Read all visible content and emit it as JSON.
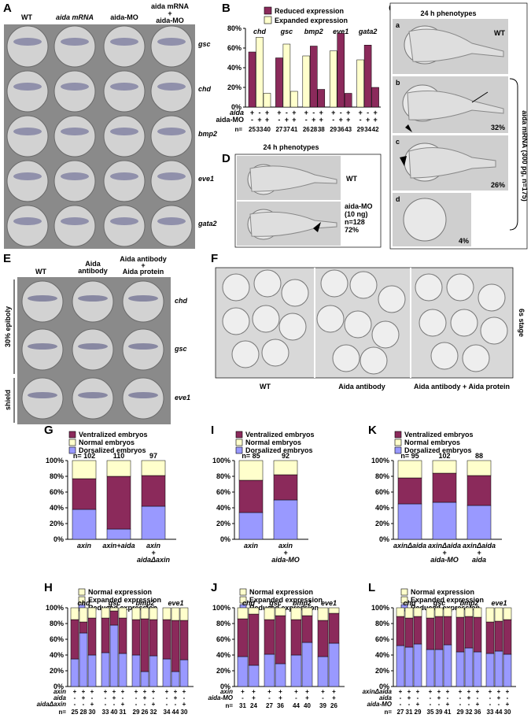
{
  "colors": {
    "reduced": "#8b2a5b",
    "expanded": "#ffffcc",
    "ventral": "#8b2a5b",
    "normal": "#ffffcc",
    "dorsal": "#9999ff",
    "grid": "#000000"
  },
  "panels": {
    "A": {
      "label": "A",
      "cols": [
        "WT",
        "aida mRNA",
        "aida-MO",
        "aida mRNA + aida-MO"
      ],
      "genes": [
        "gsc",
        "chd",
        "bmp2",
        "eve1",
        "gata2"
      ]
    },
    "B": {
      "label": "B"
    },
    "C": {
      "label": "C",
      "title": "24 h phenotypes",
      "wt": "WT",
      "sub": [
        "a",
        "b",
        "c",
        "d"
      ],
      "pct": [
        "32%",
        "26%",
        "4%"
      ],
      "side": "aida mRNA (300 pg, n=175)"
    },
    "D": {
      "label": "D",
      "title": "24 h phenotypes",
      "wt": "WT",
      "mo": "aida-MO",
      "dose": "(10 ng)",
      "n": "n=128",
      "pct": "72%"
    },
    "E": {
      "label": "E",
      "cols": [
        "WT",
        "Aida antibody",
        "Aida antibody + Aida protein"
      ],
      "genes": [
        "chd",
        "gsc",
        "eve1"
      ],
      "stage1": "30% epiboly",
      "stage2": "shield"
    },
    "F": {
      "label": "F",
      "groups": [
        "WT",
        "Aida antibody",
        "Aida antibody + Aida protein"
      ],
      "stage": "6s stage"
    },
    "G": {
      "label": "G"
    },
    "H": {
      "label": "H"
    },
    "I": {
      "label": "I"
    },
    "J": {
      "label": "J"
    },
    "K": {
      "label": "K"
    },
    "L": {
      "label": "L"
    }
  },
  "chart_data": [
    {
      "id": "B",
      "type": "bar",
      "legend": [
        "Reduced expression",
        "Expanded expression"
      ],
      "genes": [
        "chd",
        "gsc",
        "bmp2",
        "eve1",
        "gata2"
      ],
      "yticks": [
        "0%",
        "20%",
        "40%",
        "60%",
        "80%"
      ],
      "ylim": [
        0,
        80
      ],
      "row_labels": [
        "aida",
        "aida-MO",
        "n="
      ],
      "aida_row": [
        "+",
        "-",
        "+",
        "+",
        "-",
        "+",
        "+",
        "-",
        "+",
        "+",
        "-",
        "+",
        "+",
        "-",
        "+"
      ],
      "mo_row": [
        "-",
        "+",
        "+",
        "-",
        "+",
        "+",
        "-",
        "+",
        "+",
        "-",
        "+",
        "+",
        "-",
        "+",
        "+"
      ],
      "bars": [
        {
          "reduced": 56,
          "expanded": 0
        },
        {
          "reduced": 0,
          "expanded": 71
        },
        {
          "reduced": 0,
          "expanded": 14
        },
        {
          "reduced": 50,
          "expanded": 0
        },
        {
          "reduced": 0,
          "expanded": 64
        },
        {
          "reduced": 0,
          "expanded": 16
        },
        {
          "reduced": 0,
          "expanded": 52
        },
        {
          "reduced": 62,
          "expanded": 0
        },
        {
          "reduced": 18,
          "expanded": 0
        },
        {
          "reduced": 0,
          "expanded": 57
        },
        {
          "reduced": 75,
          "expanded": 0
        },
        {
          "reduced": 14,
          "expanded": 0
        },
        {
          "reduced": 0,
          "expanded": 48
        },
        {
          "reduced": 63,
          "expanded": 0
        },
        {
          "reduced": 20,
          "expanded": 0
        }
      ],
      "n": [
        "25",
        "33",
        "40",
        "27",
        "37",
        "41",
        "26",
        "28",
        "38",
        "29",
        "36",
        "43",
        "29",
        "34",
        "42"
      ]
    },
    {
      "id": "G",
      "type": "bar",
      "legend": [
        "Ventralized embryos",
        "Normal embryos",
        "Dorsalized embryos"
      ],
      "yticks": [
        "0%",
        "20%",
        "40%",
        "60%",
        "80%",
        "100%"
      ],
      "n_prefix": "n=",
      "n": [
        "102",
        "110",
        "97"
      ],
      "categories": [
        [
          "axin"
        ],
        [
          "axin+aida"
        ],
        [
          "axin",
          "+",
          "aidaΔaxin"
        ]
      ],
      "bars": [
        {
          "dorsal": 38,
          "ventral": 39,
          "normal": 23
        },
        {
          "dorsal": 13,
          "ventral": 67,
          "normal": 20
        },
        {
          "dorsal": 42,
          "ventral": 39,
          "normal": 19
        }
      ]
    },
    {
      "id": "I",
      "type": "bar",
      "legend": [
        "Ventralized embryos",
        "Normal embryos",
        "Dorsalized embryos"
      ],
      "yticks": [
        "0%",
        "20%",
        "40%",
        "60%",
        "80%",
        "100%"
      ],
      "n_prefix": "n=",
      "n": [
        "85",
        "92"
      ],
      "categories": [
        [
          "axin"
        ],
        [
          "axin",
          "+",
          "aida-MO"
        ]
      ],
      "bars": [
        {
          "dorsal": 34,
          "ventral": 41,
          "normal": 25
        },
        {
          "dorsal": 50,
          "ventral": 32,
          "normal": 18
        }
      ]
    },
    {
      "id": "K",
      "type": "bar",
      "legend": [
        "Ventralized embryos",
        "Normal embryos",
        "Dorsalized embryos"
      ],
      "yticks": [
        "0%",
        "20%",
        "40%",
        "60%",
        "80%",
        "100%"
      ],
      "n_prefix": "n=",
      "n": [
        "95",
        "102",
        "88"
      ],
      "categories": [
        [
          "axinΔaida"
        ],
        [
          "axinΔaida",
          "+",
          "aida-MO"
        ],
        [
          "axinΔaida",
          "+",
          "aida"
        ]
      ],
      "bars": [
        {
          "dorsal": 45,
          "ventral": 33,
          "normal": 22
        },
        {
          "dorsal": 47,
          "ventral": 37,
          "normal": 16
        },
        {
          "dorsal": 43,
          "ventral": 38,
          "normal": 19
        }
      ]
    },
    {
      "id": "H",
      "type": "bar",
      "legend": [
        "Normal expression",
        "Expanded expression",
        "Reduced expression"
      ],
      "yticks": [
        "0%",
        "20%",
        "40%",
        "60%",
        "80%",
        "100%"
      ],
      "genes": [
        "chd",
        "gsc",
        "bmp2",
        "eve1"
      ],
      "rows": [
        {
          "label": "axin",
          "signs": [
            "+",
            "+",
            "+",
            "+",
            "+",
            "+",
            "+",
            "+",
            "+",
            "+",
            "+",
            "+"
          ]
        },
        {
          "label": "aida",
          "signs": [
            "-",
            "+",
            "-",
            "-",
            "+",
            "-",
            "-",
            "+",
            "-",
            "-",
            "+",
            "-"
          ]
        },
        {
          "label": "aidaΔaxin",
          "signs": [
            "-",
            "-",
            "+",
            "-",
            "-",
            "+",
            "-",
            "-",
            "+",
            "-",
            "-",
            "+"
          ]
        }
      ],
      "n": [
        "25",
        "28",
        "30",
        "33",
        "40",
        "31",
        "29",
        "26",
        "32",
        "34",
        "44",
        "30"
      ],
      "bars": [
        {
          "reduced": 35,
          "expanded": 50,
          "normal": 15
        },
        {
          "reduced": 68,
          "expanded": 14,
          "normal": 18
        },
        {
          "reduced": 40,
          "expanded": 47,
          "normal": 13
        },
        {
          "reduced": 43,
          "expanded": 44,
          "normal": 13
        },
        {
          "reduced": 78,
          "expanded": 18,
          "normal": 4
        },
        {
          "reduced": 42,
          "expanded": 45,
          "normal": 13
        },
        {
          "reduced": 40,
          "expanded": 45,
          "normal": 15
        },
        {
          "reduced": 19,
          "expanded": 67,
          "normal": 14
        },
        {
          "reduced": 39,
          "expanded": 46,
          "normal": 15
        },
        {
          "reduced": 35,
          "expanded": 50,
          "normal": 15
        },
        {
          "reduced": 19,
          "expanded": 65,
          "normal": 16
        },
        {
          "reduced": 34,
          "expanded": 50,
          "normal": 16
        }
      ]
    },
    {
      "id": "J",
      "type": "bar",
      "legend": [
        "Normal expression",
        "Expanded expression",
        "Reduced expression"
      ],
      "yticks": [
        "0%",
        "20%",
        "40%",
        "60%",
        "80%",
        "100%"
      ],
      "genes": [
        "chd",
        "gsc",
        "bmp2",
        "eve1"
      ],
      "rows": [
        {
          "label": "axin",
          "signs": [
            "+",
            "+",
            "+",
            "+",
            "+",
            "+",
            "+",
            "+"
          ]
        },
        {
          "label": "aida-MO",
          "signs": [
            "-",
            "+",
            "-",
            "+",
            "-",
            "+",
            "-",
            "+"
          ]
        }
      ],
      "n": [
        "31",
        "24",
        "27",
        "36",
        "44",
        "40",
        "39",
        "26"
      ],
      "bars": [
        {
          "reduced": 38,
          "expanded": 48,
          "normal": 14
        },
        {
          "reduced": 27,
          "expanded": 65,
          "normal": 8
        },
        {
          "reduced": 41,
          "expanded": 44,
          "normal": 15
        },
        {
          "reduced": 29,
          "expanded": 61,
          "normal": 10
        },
        {
          "reduced": 40,
          "expanded": 45,
          "normal": 15
        },
        {
          "reduced": 56,
          "expanded": 34,
          "normal": 10
        },
        {
          "reduced": 38,
          "expanded": 46,
          "normal": 16
        },
        {
          "reduced": 55,
          "expanded": 38,
          "normal": 7
        }
      ]
    },
    {
      "id": "L",
      "type": "bar",
      "legend": [
        "Normal expression",
        "Expanded expression",
        "Reduced expression"
      ],
      "yticks": [
        "0%",
        "20%",
        "40%",
        "60%",
        "80%",
        "100%"
      ],
      "genes": [
        "chd",
        "gsc",
        "bmp2",
        "eve1"
      ],
      "rows": [
        {
          "label": "axinΔaida",
          "signs": [
            "+",
            "+",
            "+",
            "+",
            "+",
            "+",
            "+",
            "+",
            "+",
            "+",
            "+",
            "+"
          ]
        },
        {
          "label": "aida",
          "signs": [
            "-",
            "+",
            "-",
            "-",
            "+",
            "-",
            "-",
            "+",
            "-",
            "-",
            "+",
            "-"
          ]
        },
        {
          "label": "aida-MO",
          "signs": [
            "-",
            "-",
            "+",
            "-",
            "-",
            "+",
            "-",
            "-",
            "+",
            "-",
            "-",
            "+"
          ]
        }
      ],
      "n": [
        "27",
        "31",
        "29",
        "35",
        "39",
        "41",
        "29",
        "32",
        "36",
        "33",
        "44",
        "30"
      ],
      "bars": [
        {
          "reduced": 52,
          "expanded": 37,
          "normal": 11
        },
        {
          "reduced": 50,
          "expanded": 37,
          "normal": 13
        },
        {
          "reduced": 54,
          "expanded": 35,
          "normal": 11
        },
        {
          "reduced": 47,
          "expanded": 40,
          "normal": 13
        },
        {
          "reduced": 47,
          "expanded": 42,
          "normal": 11
        },
        {
          "reduced": 53,
          "expanded": 36,
          "normal": 11
        },
        {
          "reduced": 44,
          "expanded": 44,
          "normal": 12
        },
        {
          "reduced": 49,
          "expanded": 40,
          "normal": 11
        },
        {
          "reduced": 44,
          "expanded": 44,
          "normal": 12
        },
        {
          "reduced": 42,
          "expanded": 40,
          "normal": 18
        },
        {
          "reduced": 45,
          "expanded": 38,
          "normal": 17
        },
        {
          "reduced": 41,
          "expanded": 44,
          "normal": 15
        }
      ]
    }
  ]
}
